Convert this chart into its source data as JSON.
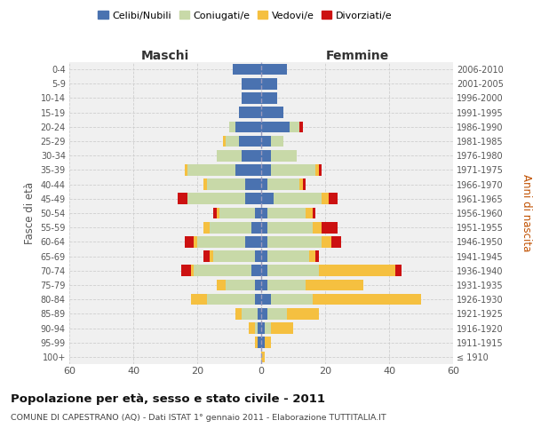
{
  "age_groups": [
    "100+",
    "95-99",
    "90-94",
    "85-89",
    "80-84",
    "75-79",
    "70-74",
    "65-69",
    "60-64",
    "55-59",
    "50-54",
    "45-49",
    "40-44",
    "35-39",
    "30-34",
    "25-29",
    "20-24",
    "15-19",
    "10-14",
    "5-9",
    "0-4"
  ],
  "birth_years": [
    "≤ 1910",
    "1911-1915",
    "1916-1920",
    "1921-1925",
    "1926-1930",
    "1931-1935",
    "1936-1940",
    "1941-1945",
    "1946-1950",
    "1951-1955",
    "1956-1960",
    "1961-1965",
    "1966-1970",
    "1971-1975",
    "1976-1980",
    "1981-1985",
    "1986-1990",
    "1991-1995",
    "1996-2000",
    "2001-2005",
    "2006-2010"
  ],
  "male": {
    "celibe": [
      0,
      1,
      1,
      1,
      2,
      2,
      3,
      2,
      5,
      3,
      2,
      5,
      5,
      8,
      6,
      7,
      8,
      7,
      6,
      6,
      9
    ],
    "coniugato": [
      0,
      0,
      1,
      5,
      15,
      9,
      18,
      13,
      15,
      13,
      11,
      18,
      12,
      15,
      8,
      4,
      2,
      0,
      0,
      0,
      0
    ],
    "vedovo": [
      0,
      1,
      2,
      2,
      5,
      3,
      1,
      1,
      1,
      2,
      1,
      0,
      1,
      1,
      0,
      1,
      0,
      0,
      0,
      0,
      0
    ],
    "divorziato": [
      0,
      0,
      0,
      0,
      0,
      0,
      3,
      2,
      3,
      0,
      1,
      3,
      0,
      0,
      0,
      0,
      0,
      0,
      0,
      0,
      0
    ]
  },
  "female": {
    "nubile": [
      0,
      1,
      1,
      2,
      3,
      2,
      2,
      2,
      2,
      2,
      2,
      4,
      2,
      3,
      3,
      3,
      9,
      7,
      5,
      5,
      8
    ],
    "coniugata": [
      0,
      0,
      2,
      6,
      13,
      12,
      16,
      13,
      17,
      14,
      12,
      15,
      10,
      14,
      8,
      4,
      3,
      0,
      0,
      0,
      0
    ],
    "vedova": [
      1,
      2,
      7,
      10,
      34,
      18,
      24,
      2,
      3,
      3,
      2,
      2,
      1,
      1,
      0,
      0,
      0,
      0,
      0,
      0,
      0
    ],
    "divorziata": [
      0,
      0,
      0,
      0,
      0,
      0,
      2,
      1,
      3,
      5,
      1,
      3,
      1,
      1,
      0,
      0,
      1,
      0,
      0,
      0,
      0
    ]
  },
  "colors": {
    "celibe": "#4a72b0",
    "coniugato": "#c8d9a8",
    "vedovo": "#f5c040",
    "divorziato": "#cc1111"
  },
  "title": "Popolazione per età, sesso e stato civile - 2011",
  "subtitle": "COMUNE DI CAPESTRANO (AQ) - Dati ISTAT 1° gennaio 2011 - Elaborazione TUTTITALIA.IT",
  "xlabel_left": "Maschi",
  "xlabel_right": "Femmine",
  "ylabel_left": "Fasce di età",
  "ylabel_right": "Anni di nascita",
  "xlim": 60,
  "legend_labels": [
    "Celibi/Nubili",
    "Coniugati/e",
    "Vedovi/e",
    "Divorziati/e"
  ],
  "background_color": "#ffffff",
  "plot_bg": "#f0f0f0",
  "grid_color": "#cccccc"
}
